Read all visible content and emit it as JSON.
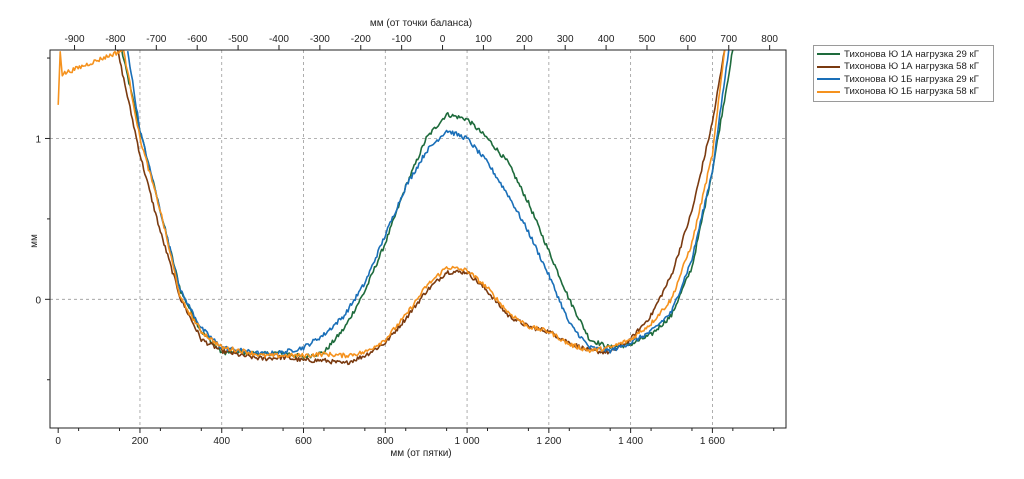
{
  "chart_data": {
    "type": "line",
    "title": "",
    "xlabel": "мм (от пятки)",
    "x2label": "мм (от точки баланса)",
    "ylabel": "мм",
    "xlim": [
      -20,
      1780
    ],
    "x_tick_values": [
      0,
      200,
      400,
      600,
      800,
      1000,
      1200,
      1400,
      1600
    ],
    "x_tick_labels": [
      "0",
      "200",
      "400",
      "600",
      "800",
      "1 000",
      "1 200",
      "1 400",
      "1 600"
    ],
    "x2_offset": 940,
    "x2_tick_values": [
      -900,
      -800,
      -700,
      -600,
      -500,
      -400,
      -300,
      -200,
      -100,
      0,
      100,
      200,
      300,
      400,
      500,
      600,
      700,
      800
    ],
    "x2_tick_labels": [
      "-900",
      "-800",
      "-700",
      "-600",
      "-500",
      "-400",
      "-300",
      "-200",
      "-100",
      "0",
      "100",
      "200",
      "300",
      "400",
      "500",
      "600",
      "700",
      "800"
    ],
    "ylim": [
      -0.8,
      1.55
    ],
    "y_tick_values": [
      0,
      1
    ],
    "y_tick_labels": [
      "0",
      "1"
    ],
    "grid": true,
    "legend_position": "right",
    "series": [
      {
        "name": "Тихонова Ю 1А нагрузка 29 кГ",
        "color": "#1e6b3c",
        "x": [
          155,
          200,
          250,
          300,
          350,
          400,
          450,
          500,
          550,
          600,
          650,
          700,
          750,
          800,
          850,
          900,
          950,
          1000,
          1050,
          1100,
          1150,
          1200,
          1250,
          1300,
          1350,
          1400,
          1450,
          1500,
          1550,
          1600,
          1650
        ],
        "y": [
          1.55,
          1.05,
          0.55,
          0.05,
          -0.2,
          -0.33,
          -0.33,
          -0.34,
          -0.33,
          -0.36,
          -0.33,
          -0.18,
          0.05,
          0.35,
          0.7,
          1.0,
          1.15,
          1.12,
          1.0,
          0.85,
          0.6,
          0.3,
          0.0,
          -0.25,
          -0.3,
          -0.28,
          -0.22,
          -0.1,
          0.2,
          0.8,
          1.55
        ]
      },
      {
        "name": "Тихонова Ю 1А нагрузка 58 кГ",
        "color": "#7a3a10",
        "x": [
          145,
          200,
          250,
          300,
          350,
          400,
          450,
          500,
          550,
          600,
          650,
          700,
          750,
          800,
          850,
          900,
          950,
          1000,
          1050,
          1100,
          1150,
          1200,
          1250,
          1300,
          1350,
          1400,
          1450,
          1500,
          1550,
          1600,
          1630
        ],
        "y": [
          1.55,
          0.9,
          0.42,
          0.0,
          -0.25,
          -0.32,
          -0.35,
          -0.37,
          -0.36,
          -0.38,
          -0.38,
          -0.4,
          -0.35,
          -0.27,
          -0.12,
          0.05,
          0.17,
          0.17,
          0.05,
          -0.1,
          -0.17,
          -0.2,
          -0.27,
          -0.32,
          -0.33,
          -0.25,
          -0.1,
          0.15,
          0.55,
          1.1,
          1.55
        ]
      },
      {
        "name": "Тихонова Ю 1Б нагрузка 29 кГ",
        "color": "#1a6fb8",
        "x": [
          170,
          200,
          250,
          300,
          350,
          400,
          450,
          500,
          550,
          600,
          650,
          700,
          750,
          800,
          850,
          900,
          950,
          1000,
          1050,
          1100,
          1150,
          1200,
          1250,
          1300,
          1350,
          1400,
          1450,
          1500,
          1550,
          1600,
          1640
        ],
        "y": [
          1.55,
          1.05,
          0.55,
          0.05,
          -0.18,
          -0.3,
          -0.32,
          -0.34,
          -0.33,
          -0.3,
          -0.22,
          -0.1,
          0.1,
          0.4,
          0.7,
          0.92,
          1.05,
          1.0,
          0.85,
          0.65,
          0.42,
          0.15,
          -0.15,
          -0.3,
          -0.32,
          -0.27,
          -0.2,
          -0.08,
          0.25,
          0.8,
          1.55
        ]
      },
      {
        "name": "Тихонова Ю 1Б нагрузка 58 кГ",
        "color": "#f5921e",
        "x": [
          0,
          5,
          10,
          160,
          200,
          250,
          300,
          350,
          400,
          450,
          500,
          550,
          600,
          650,
          700,
          750,
          800,
          850,
          900,
          950,
          1000,
          1050,
          1100,
          1150,
          1200,
          1250,
          1300,
          1350,
          1400,
          1450,
          1500,
          1550,
          1600,
          1630
        ],
        "y": [
          1.2,
          1.55,
          1.4,
          1.55,
          1.0,
          0.55,
          0.0,
          -0.2,
          -0.3,
          -0.32,
          -0.35,
          -0.35,
          -0.35,
          -0.34,
          -0.35,
          -0.33,
          -0.25,
          -0.1,
          0.08,
          0.2,
          0.18,
          0.07,
          -0.08,
          -0.17,
          -0.2,
          -0.28,
          -0.32,
          -0.3,
          -0.25,
          -0.15,
          0.0,
          0.35,
          0.9,
          1.55
        ]
      }
    ]
  }
}
